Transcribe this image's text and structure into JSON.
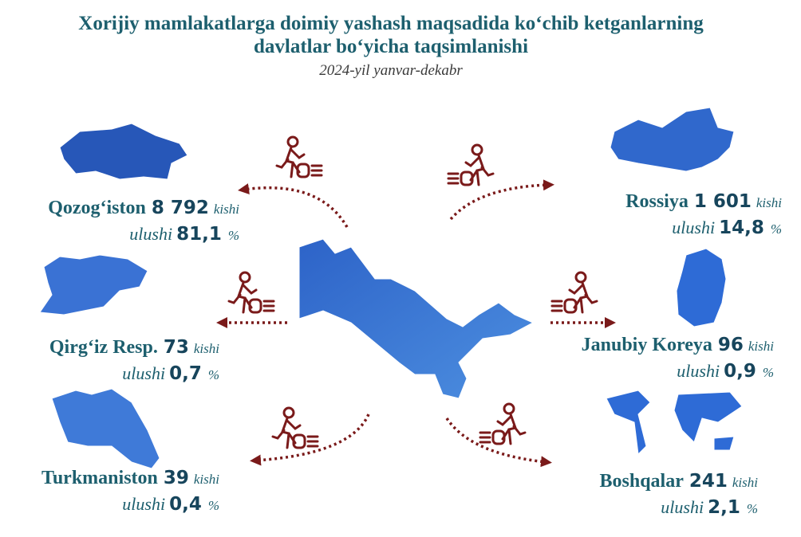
{
  "header": {
    "title_line1": "Xorijiy mamlakatlarga doimiy yashash maqsadida ko‘chib ketganlarning",
    "title_line2": "davlatlar bo‘yicha taqsimlanishi",
    "subtitle": "2024-yil yanvar-dekabr"
  },
  "destinations": [
    {
      "country": "Qozog‘iston",
      "count": "8 792",
      "unit": "kishi",
      "share_label": "ulushi",
      "share": "81,1",
      "percent": "%"
    },
    {
      "country": "Qirg‘iz Resp.",
      "count": "73",
      "unit": "kishi",
      "share_label": "ulushi",
      "share": "0,7",
      "percent": "%"
    },
    {
      "country": "Turkmaniston",
      "count": "39",
      "unit": "kishi",
      "share_label": "ulushi",
      "share": "0,4",
      "percent": "%"
    },
    {
      "country": "Rossiya",
      "count": "1 601",
      "unit": "kishi",
      "share_label": "ulushi",
      "share": "14,8",
      "percent": "%"
    },
    {
      "country": "Janubiy Koreya",
      "count": "96",
      "unit": "kishi",
      "share_label": "ulushi",
      "share": "0,9",
      "percent": "%"
    },
    {
      "country": "Boshqalar",
      "count": "241",
      "unit": "kishi",
      "share_label": "ulushi",
      "share": "2,1",
      "percent": "%"
    }
  ]
}
